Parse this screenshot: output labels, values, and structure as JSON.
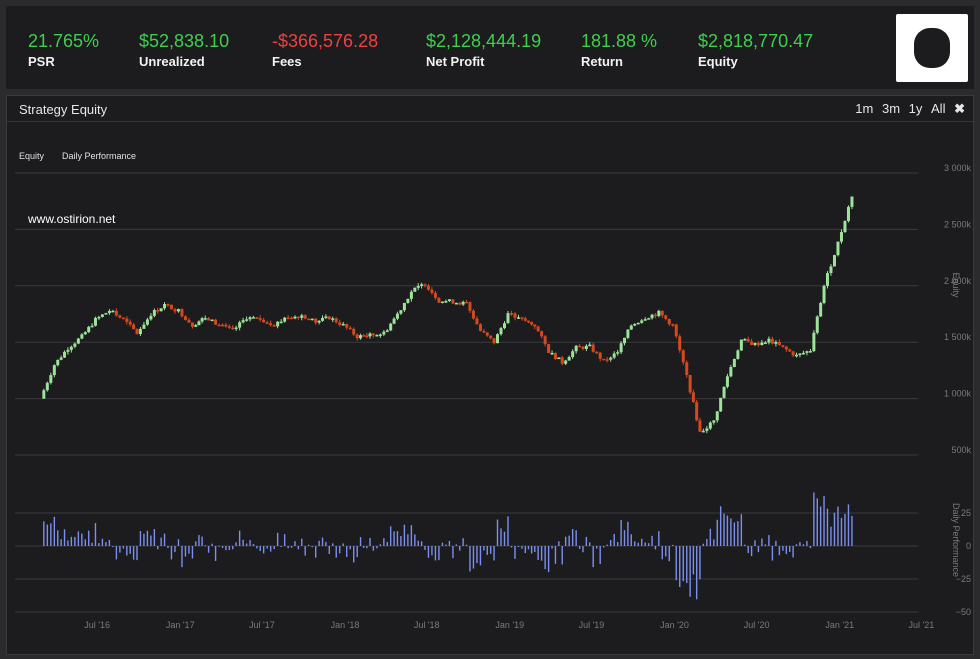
{
  "stats": [
    {
      "value": "21.765%",
      "label": "PSR",
      "color": "#3ecf4e"
    },
    {
      "value": "$52,838.10",
      "label": "Unrealized",
      "color": "#3ecf4e"
    },
    {
      "value": "-$366,576.28",
      "label": "Fees",
      "color": "#f04040"
    },
    {
      "value": "$2,128,444.19",
      "label": "Net Profit",
      "color": "#3ecf4e"
    },
    {
      "value": "181.88 %",
      "label": "Return",
      "color": "#3ecf4e"
    },
    {
      "value": "$2,818,770.47",
      "label": "Equity",
      "color": "#3ecf4e"
    }
  ],
  "panel": {
    "title": "Strategy Equity",
    "ranges": [
      "1m",
      "3m",
      "1y",
      "All"
    ],
    "close_icon": "close-icon",
    "legend": [
      "Equity",
      "Daily Performance"
    ],
    "watermark": "www.ostirion.net"
  },
  "colors": {
    "up": "#9de39a",
    "down": "#d6491f",
    "bar": "#7b8ff0",
    "grid": "#3a3a3c",
    "axis_text": "#7a7a7a"
  },
  "chart_data": [
    {
      "type": "candlestick",
      "ylabel": "Equity",
      "ylim": [
        500000,
        3000000
      ],
      "yticks": [
        "500k",
        "1 000k",
        "1 500k",
        "2 000k",
        "2 500k",
        "3 000k"
      ],
      "x_tick_labels": [
        "Jul '16",
        "Jan '17",
        "Jul '17",
        "Jan '18",
        "Jul '18",
        "Jan '19",
        "Jul '19",
        "Jan '20",
        "Jul '20",
        "Jan '21",
        "Jul '21"
      ],
      "x": [
        "2016-03",
        "2016-04",
        "2016-05",
        "2016-06",
        "2016-07",
        "2016-08",
        "2016-09",
        "2016-10",
        "2016-11",
        "2016-12",
        "2017-01",
        "2017-02",
        "2017-03",
        "2017-04",
        "2017-05",
        "2017-06",
        "2017-07",
        "2017-08",
        "2017-09",
        "2017-10",
        "2017-11",
        "2017-12",
        "2018-01",
        "2018-02",
        "2018-03",
        "2018-04",
        "2018-05",
        "2018-06",
        "2018-07",
        "2018-08",
        "2018-09",
        "2018-10",
        "2018-11",
        "2018-12",
        "2019-01",
        "2019-02",
        "2019-03",
        "2019-04",
        "2019-05",
        "2019-06",
        "2019-07",
        "2019-08",
        "2019-09",
        "2019-10",
        "2019-11",
        "2019-12",
        "2020-01",
        "2020-02",
        "2020-03",
        "2020-04",
        "2020-05",
        "2020-06",
        "2020-07",
        "2020-08",
        "2020-09",
        "2020-10",
        "2020-11",
        "2020-12",
        "2021-01",
        "2021-02"
      ],
      "values": [
        1000000,
        1300000,
        1450000,
        1550000,
        1700000,
        1780000,
        1700000,
        1580000,
        1750000,
        1830000,
        1780000,
        1650000,
        1720000,
        1650000,
        1600000,
        1720000,
        1700000,
        1660000,
        1720000,
        1740000,
        1680000,
        1720000,
        1650000,
        1550000,
        1560000,
        1580000,
        1750000,
        1950000,
        2020000,
        1870000,
        1860000,
        1840000,
        1600000,
        1500000,
        1750000,
        1700000,
        1650000,
        1420000,
        1320000,
        1450000,
        1460000,
        1330000,
        1420000,
        1650000,
        1720000,
        1760000,
        1650000,
        1200000,
        700000,
        800000,
        1200000,
        1520000,
        1480000,
        1520000,
        1450000,
        1380000,
        1430000,
        2000000,
        2380000,
        2800000
      ]
    },
    {
      "type": "bar",
      "ylabel": "Daily Performance",
      "ylim": [
        -50,
        50
      ],
      "yticks": [
        "−50",
        "−25",
        "0",
        "25"
      ]
    }
  ]
}
